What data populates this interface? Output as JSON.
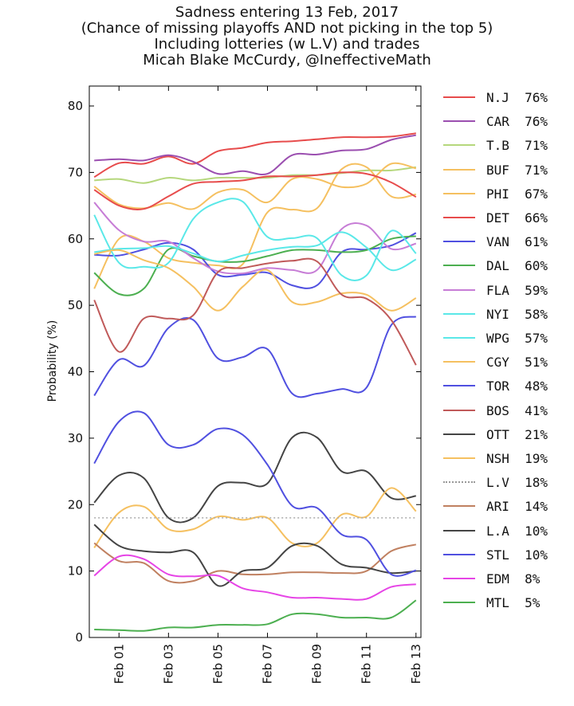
{
  "chart_data": {
    "type": "line",
    "title": [
      "Sadness entering 13 Feb, 2017",
      "(Chance of missing playoffs AND not picking in the top 5)",
      "Including lotteries (w L.V) and trades",
      "Micah Blake McCurdy, @IneffectiveMath"
    ],
    "xlabel": "",
    "ylabel": "Probability (%)",
    "x": [
      "Jan 31",
      "Feb 01",
      "Feb 02",
      "Feb 03",
      "Feb 04",
      "Feb 05",
      "Feb 06",
      "Feb 07",
      "Feb 08",
      "Feb 09",
      "Feb 10",
      "Feb 11",
      "Feb 12",
      "Feb 13"
    ],
    "xticks": [
      "Feb 01",
      "Feb 03",
      "Feb 05",
      "Feb 07",
      "Feb 09",
      "Feb 11",
      "Feb 13"
    ],
    "xtick_positions": [
      1,
      3,
      5,
      7,
      9,
      11,
      13
    ],
    "xlim": [
      -0.2,
      13.2
    ],
    "ylim": [
      0,
      83
    ],
    "yticks": [
      0,
      10,
      20,
      30,
      40,
      50,
      60,
      70,
      80
    ],
    "grid": false,
    "legend_position": "right",
    "series": [
      {
        "name": "N.J",
        "label": "76%",
        "color": "#e74c4c",
        "values": [
          69.3,
          71.4,
          71.3,
          72.4,
          71.3,
          73.2,
          73.7,
          74.5,
          74.7,
          75.0,
          75.3,
          75.3,
          75.4,
          75.9
        ]
      },
      {
        "name": "CAR",
        "label": "76%",
        "color": "#9b4fb0",
        "values": [
          71.8,
          72.0,
          71.8,
          72.6,
          71.6,
          69.8,
          70.2,
          69.8,
          72.6,
          72.7,
          73.3,
          73.5,
          74.9,
          75.6
        ]
      },
      {
        "name": "T.B",
        "label": "71%",
        "color": "#b5d77c",
        "values": [
          68.8,
          69.0,
          68.4,
          69.2,
          68.8,
          69.2,
          69.2,
          69.2,
          69.6,
          69.6,
          69.9,
          70.3,
          70.3,
          70.8
        ]
      },
      {
        "name": "BUF",
        "label": "71%",
        "color": "#f5c060",
        "values": [
          67.9,
          65.2,
          64.6,
          65.4,
          64.5,
          67.0,
          67.4,
          65.5,
          69.0,
          69.0,
          67.8,
          68.3,
          71.3,
          70.6
        ]
      },
      {
        "name": "PHI",
        "label": "67%",
        "color": "#f5c060",
        "values": [
          52.5,
          60.0,
          59.6,
          57.1,
          56.4,
          56.0,
          56.2,
          64.0,
          64.4,
          64.6,
          70.5,
          70.8,
          66.4,
          66.7
        ]
      },
      {
        "name": "DET",
        "label": "66%",
        "color": "#e74c4c",
        "values": [
          67.4,
          65.0,
          64.5,
          66.4,
          68.3,
          68.6,
          68.8,
          69.4,
          69.4,
          69.6,
          70.0,
          69.8,
          68.5,
          66.3
        ]
      },
      {
        "name": "VAN",
        "label": "61%",
        "color": "#5050e0",
        "values": [
          57.6,
          57.5,
          58.4,
          59.4,
          58.4,
          54.6,
          54.6,
          54.9,
          53.0,
          53.0,
          58.0,
          58.4,
          59.0,
          60.9
        ]
      },
      {
        "name": "DAL",
        "label": "60%",
        "color": "#4caf50",
        "values": [
          54.9,
          51.7,
          52.5,
          58.4,
          57.4,
          56.6,
          56.6,
          57.4,
          58.3,
          58.3,
          58.0,
          58.3,
          60.0,
          60.4
        ]
      },
      {
        "name": "FLA",
        "label": "59%",
        "color": "#c77dd6",
        "values": [
          65.5,
          61.3,
          59.6,
          59.6,
          57.1,
          55.1,
          54.8,
          55.6,
          55.3,
          55.3,
          61.5,
          62.0,
          58.5,
          59.3
        ]
      },
      {
        "name": "NYI",
        "label": "58%",
        "color": "#5ae8e8",
        "values": [
          63.6,
          56.4,
          55.8,
          56.4,
          63.0,
          65.5,
          65.6,
          60.3,
          60.1,
          60.1,
          54.5,
          54.5,
          61.2,
          57.8
        ]
      },
      {
        "name": "WPG",
        "label": "57%",
        "color": "#5ae8e8",
        "values": [
          58.0,
          58.5,
          58.6,
          58.9,
          57.8,
          56.6,
          57.5,
          58.3,
          58.8,
          59.0,
          61.0,
          58.7,
          55.3,
          56.9
        ]
      },
      {
        "name": "CGY",
        "label": "51%",
        "color": "#f5c060",
        "values": [
          57.7,
          58.3,
          56.8,
          55.6,
          52.8,
          49.2,
          52.8,
          55.3,
          50.5,
          50.5,
          51.8,
          51.6,
          49.2,
          51.1
        ]
      },
      {
        "name": "TOR",
        "label": "48%",
        "color": "#5050e0",
        "values": [
          36.4,
          41.8,
          40.9,
          46.6,
          47.8,
          42.0,
          42.2,
          43.4,
          36.7,
          36.7,
          37.4,
          37.6,
          47.0,
          48.3
        ]
      },
      {
        "name": "BOS",
        "label": "41%",
        "color": "#c05a5a",
        "values": [
          50.8,
          43.0,
          48.0,
          48.0,
          48.5,
          55.0,
          55.6,
          56.3,
          56.7,
          56.6,
          51.6,
          51.0,
          47.8,
          41.0
        ]
      },
      {
        "name": "OTT",
        "label": "21%",
        "color": "#444444",
        "values": [
          20.3,
          24.4,
          24.0,
          18.0,
          18.0,
          22.8,
          23.3,
          23.2,
          30.1,
          30.1,
          25.0,
          25.0,
          21.0,
          21.3
        ]
      },
      {
        "name": "NSH",
        "label": "19%",
        "color": "#f5c060",
        "values": [
          13.5,
          18.8,
          19.7,
          16.3,
          16.3,
          18.2,
          17.7,
          18.0,
          14.2,
          14.2,
          18.5,
          18.2,
          22.5,
          19.0
        ]
      },
      {
        "name": "L.V",
        "label": "18%",
        "color": "#aaaaaa",
        "dashed": true,
        "values": [
          18.0,
          18.0,
          18.0,
          18.0,
          18.0,
          18.0,
          18.0,
          18.0,
          18.0,
          18.0,
          18.0,
          18.0,
          18.0,
          18.0
        ]
      },
      {
        "name": "ARI",
        "label": "14%",
        "color": "#c08060",
        "values": [
          14.2,
          11.5,
          11.2,
          8.5,
          8.5,
          10.0,
          9.5,
          9.5,
          9.8,
          9.8,
          9.7,
          10.0,
          13.0,
          14.0
        ]
      },
      {
        "name": "L.A",
        "label": "10%",
        "color": "#444444",
        "values": [
          17.0,
          13.8,
          13.0,
          12.8,
          12.8,
          7.8,
          10.0,
          10.5,
          13.8,
          13.8,
          11.0,
          10.5,
          9.7,
          10.0
        ]
      },
      {
        "name": "STL",
        "label": "10%",
        "color": "#5050e0",
        "values": [
          26.2,
          32.5,
          33.8,
          29.0,
          29.0,
          31.4,
          30.5,
          26.0,
          19.8,
          19.5,
          15.5,
          14.7,
          9.5,
          10.1
        ]
      },
      {
        "name": "EDM",
        "label": "8%",
        "color": "#e645e6",
        "values": [
          9.3,
          12.2,
          11.8,
          9.5,
          9.2,
          9.3,
          7.4,
          6.8,
          6.0,
          6.0,
          5.8,
          5.8,
          7.6,
          8.0
        ]
      },
      {
        "name": "MTL",
        "label": "5%",
        "color": "#4caf50",
        "values": [
          1.2,
          1.1,
          1.0,
          1.5,
          1.5,
          1.9,
          1.9,
          2.0,
          3.5,
          3.5,
          3.0,
          3.0,
          3.0,
          5.6
        ]
      }
    ]
  }
}
